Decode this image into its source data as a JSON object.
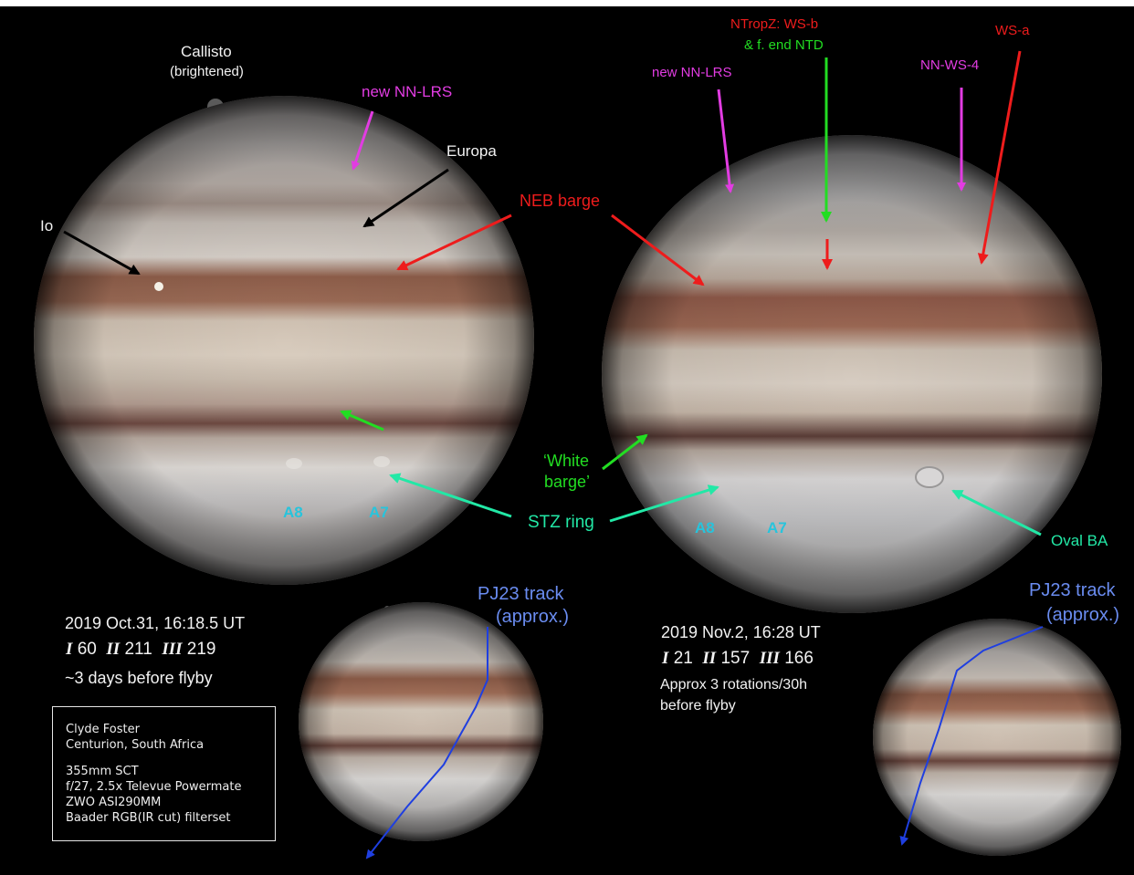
{
  "labels": {
    "callisto": "Callisto",
    "callisto_note": "(brightened)",
    "io": "Io",
    "europa": "Europa",
    "new_nn_lrs_left": "new NN-LRS",
    "new_nn_lrs_right": "new NN-LRS",
    "neb_barge": "NEB barge",
    "ntropz_ws_b": "NTropZ:  WS-b",
    "f_end_ntd": "& f. end NTD",
    "ws_a": "WS-a",
    "nn_ws_4": "NN-WS-4",
    "white_barge_1": "‘White",
    "white_barge_2": "barge’",
    "stz_ring": "STZ ring",
    "oval_ba": "Oval BA",
    "a8_left": "A8",
    "a7_left": "A7",
    "a8_right": "A8",
    "a7_right": "A7",
    "pj23_left_1": "PJ23 track",
    "pj23_left_2": "(approx.)",
    "pj23_right_1": "PJ23 track",
    "pj23_right_2": "(approx.)"
  },
  "left_info": {
    "date": "2019 Oct.31, 16:18.5 UT",
    "sys1_label": "I",
    "sys1_value": "60",
    "sys2_label": "II",
    "sys2_value": "211",
    "sys3_label": "III",
    "sys3_value": "219",
    "note": "~3 days before flyby"
  },
  "right_info": {
    "date": "2019 Nov.2,  16:28 UT",
    "sys1_label": "I",
    "sys1_value": "21",
    "sys2_label": "II",
    "sys2_value": "157",
    "sys3_label": "III",
    "sys3_value": "166",
    "note1": "Approx 3 rotations/30h",
    "note2": "before flyby"
  },
  "credit": {
    "name": "Clyde Foster",
    "location": "Centurion, South Africa",
    "scope": "355mm SCT",
    "optics": "f/27, 2.5x Televue Powermate",
    "camera": "ZWO ASI290MM",
    "filters": "Baader  RGB(IR cut) filterset"
  },
  "colors": {
    "background": "#000000",
    "magenta": "#e23ce2",
    "red": "#ee1c1c",
    "green": "#22dd22",
    "teal": "#22e8a6",
    "cyan": "#27c4dc",
    "blue": "#6a8cf0"
  }
}
